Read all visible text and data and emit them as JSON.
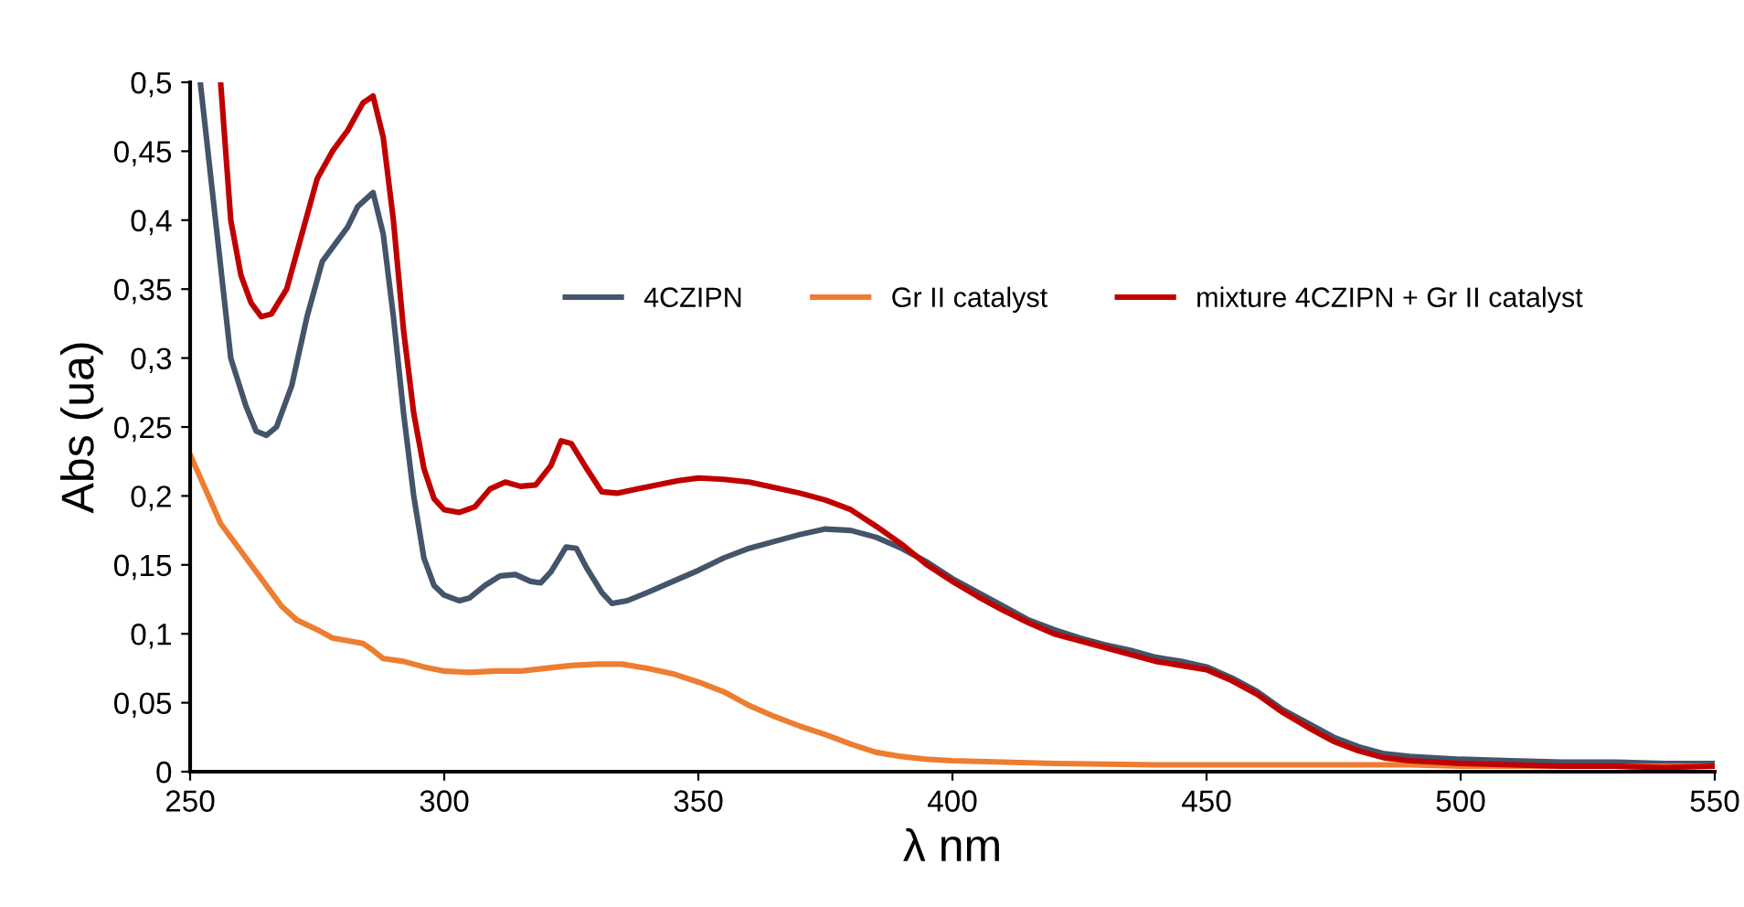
{
  "chart_data": {
    "type": "line",
    "xlabel": "λ nm",
    "ylabel": "Abs (ua)",
    "xlim": [
      250,
      550
    ],
    "ylim": [
      0,
      0.5
    ],
    "xticks": [
      250,
      300,
      350,
      400,
      450,
      500,
      550
    ],
    "yticks": [
      0,
      {
        "value": 0.05,
        "label": "0,05"
      },
      {
        "value": 0.1,
        "label": "0,1"
      },
      {
        "value": 0.15,
        "label": "0,15"
      },
      {
        "value": 0.2,
        "label": "0,2"
      },
      {
        "value": 0.25,
        "label": "0,25"
      },
      {
        "value": 0.3,
        "label": "0,3"
      },
      {
        "value": 0.35,
        "label": "0,35"
      },
      {
        "value": 0.4,
        "label": "0,4"
      },
      {
        "value": 0.45,
        "label": "0,45"
      },
      {
        "value": 0.5,
        "label": "0,5"
      }
    ],
    "grid": false,
    "legend": "top right",
    "marker": "none",
    "line_style": "solid",
    "series": [
      {
        "name": "4CZIPN",
        "color": "#44546a",
        "x": [
          252,
          255,
          258,
          261,
          263,
          265,
          267,
          270,
          273,
          276,
          279,
          281,
          283,
          286,
          288,
          290,
          292,
          294,
          296,
          298,
          300,
          303,
          305,
          308,
          311,
          314,
          317,
          319,
          321,
          324,
          326,
          328,
          331,
          333,
          336,
          340,
          345,
          350,
          355,
          360,
          365,
          370,
          375,
          380,
          385,
          390,
          395,
          400,
          405,
          410,
          415,
          420,
          425,
          430,
          435,
          440,
          445,
          450,
          455,
          460,
          465,
          470,
          475,
          480,
          485,
          490,
          500,
          510,
          520,
          530,
          540,
          550
        ],
        "values": [
          0.5,
          0.4,
          0.3,
          0.265,
          0.247,
          0.244,
          0.25,
          0.28,
          0.33,
          0.37,
          0.385,
          0.395,
          0.41,
          0.42,
          0.39,
          0.33,
          0.26,
          0.2,
          0.155,
          0.135,
          0.128,
          0.124,
          0.126,
          0.135,
          0.142,
          0.143,
          0.138,
          0.137,
          0.145,
          0.163,
          0.162,
          0.148,
          0.13,
          0.122,
          0.124,
          0.13,
          0.138,
          0.146,
          0.155,
          0.162,
          0.167,
          0.172,
          0.176,
          0.175,
          0.17,
          0.162,
          0.152,
          0.14,
          0.13,
          0.12,
          0.11,
          0.103,
          0.097,
          0.092,
          0.088,
          0.083,
          0.08,
          0.076,
          0.068,
          0.058,
          0.045,
          0.035,
          0.025,
          0.018,
          0.013,
          0.011,
          0.009,
          0.008,
          0.007,
          0.007,
          0.006,
          0.006
        ]
      },
      {
        "name": "Gr II catalyst",
        "color": "#ed7d31",
        "x": [
          250,
          253,
          256,
          260,
          264,
          268,
          271,
          275,
          278,
          281,
          284,
          286,
          288,
          292,
          296,
          300,
          305,
          310,
          315,
          320,
          325,
          330,
          335,
          340,
          345,
          350,
          355,
          360,
          365,
          370,
          375,
          380,
          385,
          390,
          395,
          400,
          410,
          420,
          440,
          460,
          480,
          490,
          500,
          520,
          550
        ],
        "values": [
          0.23,
          0.205,
          0.18,
          0.16,
          0.14,
          0.12,
          0.11,
          0.103,
          0.097,
          0.095,
          0.093,
          0.088,
          0.082,
          0.08,
          0.076,
          0.073,
          0.072,
          0.073,
          0.073,
          0.075,
          0.077,
          0.078,
          0.078,
          0.075,
          0.071,
          0.065,
          0.058,
          0.048,
          0.04,
          0.033,
          0.027,
          0.02,
          0.014,
          0.011,
          0.009,
          0.008,
          0.007,
          0.006,
          0.005,
          0.005,
          0.005,
          0.005,
          0.004,
          0.004,
          0.004
        ]
      },
      {
        "name": "mixture 4CZIPN + Gr II catalyst",
        "color": "#c00000",
        "x": [
          256,
          258,
          260,
          262,
          264,
          266,
          269,
          272,
          275,
          278,
          281,
          284,
          286,
          288,
          290,
          292,
          294,
          296,
          298,
          300,
          303,
          306,
          309,
          312,
          315,
          318,
          321,
          323,
          325,
          328,
          331,
          334,
          338,
          342,
          346,
          350,
          355,
          360,
          365,
          370,
          375,
          380,
          385,
          390,
          395,
          400,
          405,
          410,
          415,
          420,
          425,
          430,
          435,
          440,
          445,
          450,
          455,
          460,
          465,
          470,
          475,
          480,
          485,
          490,
          500,
          510,
          520,
          530,
          540,
          550
        ],
        "values": [
          0.5,
          0.4,
          0.36,
          0.34,
          0.33,
          0.332,
          0.35,
          0.39,
          0.43,
          0.45,
          0.465,
          0.485,
          0.49,
          0.46,
          0.4,
          0.32,
          0.26,
          0.22,
          0.198,
          0.19,
          0.188,
          0.192,
          0.205,
          0.21,
          0.207,
          0.208,
          0.222,
          0.24,
          0.238,
          0.22,
          0.203,
          0.202,
          0.205,
          0.208,
          0.211,
          0.213,
          0.212,
          0.21,
          0.206,
          0.202,
          0.197,
          0.19,
          0.178,
          0.165,
          0.15,
          0.138,
          0.127,
          0.117,
          0.108,
          0.1,
          0.095,
          0.09,
          0.085,
          0.08,
          0.077,
          0.074,
          0.066,
          0.056,
          0.043,
          0.032,
          0.022,
          0.015,
          0.01,
          0.008,
          0.006,
          0.005,
          0.004,
          0.004,
          0.003,
          0.004
        ]
      }
    ]
  }
}
